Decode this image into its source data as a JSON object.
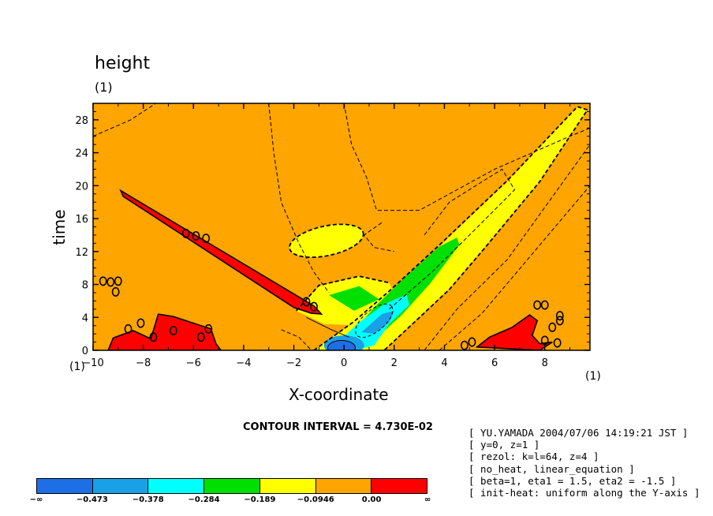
{
  "title": "height",
  "title_unit": "(1)",
  "x_unit_left": "(1)",
  "x_unit_right": "(1)",
  "contour_interval": "CONTOUR INTERVAL = 4.730E-02",
  "info_lines": [
    "[ YU.YAMADA 2004/07/06 14:19:21 JST ]",
    "[ y=0, z=1 ]",
    "[ rezol: k=l=64, z=4 ]",
    "[ no_heat, linear_equation ]",
    "[ beta=1, eta1 = 1.5, eta2 = -1.5 ]",
    "[ init-heat: uniform along the Y-axis ]"
  ],
  "colorbar": {
    "colors": [
      "#1e6ee6",
      "#1aa0e6",
      "#00ffff",
      "#00e000",
      "#ffff00",
      "#ffa500",
      "#ff0000"
    ],
    "labels": [
      "-∞",
      "-0.473",
      "-0.378",
      "-0.284",
      "-0.189",
      "-0.0946",
      "0.00",
      "∞"
    ]
  },
  "chart_data": {
    "type": "heatmap",
    "subtype": "filled contour",
    "title": "height",
    "xlabel": "X-coordinate",
    "ylabel": "time",
    "xlim": [
      -10,
      9.8
    ],
    "ylim": [
      0,
      30
    ],
    "xticks": [
      -10,
      -8,
      -6,
      -4,
      -2,
      0,
      2,
      4,
      6,
      8
    ],
    "yticks": [
      0,
      4,
      8,
      12,
      16,
      20,
      24,
      28
    ],
    "contour_interval": 0.0473,
    "levels": [
      -0.473,
      -0.378,
      -0.284,
      -0.189,
      -0.0946,
      0.0
    ],
    "background_color": "#ffa500",
    "features": [
      {
        "name": "red diagonal band",
        "color": "#ff0000",
        "from": [
          -8.8,
          19.2
        ],
        "to": [
          -1.0,
          4.5
        ]
      },
      {
        "name": "eastward wave tail",
        "from": [
          -1,
          0
        ],
        "to": [
          9.6,
          29.5
        ]
      },
      {
        "name": "yellow blob",
        "center": [
          -0.7,
          13.2
        ]
      },
      {
        "name": "blue core",
        "center": [
          0,
          0.3
        ]
      },
      {
        "name": "red patch left",
        "x_range": [
          -9.5,
          -5
        ],
        "y_range": [
          0,
          4.2
        ]
      },
      {
        "name": "red patch right",
        "x_range": [
          5.2,
          7.6
        ],
        "y_range": [
          0,
          4.3
        ]
      }
    ]
  }
}
